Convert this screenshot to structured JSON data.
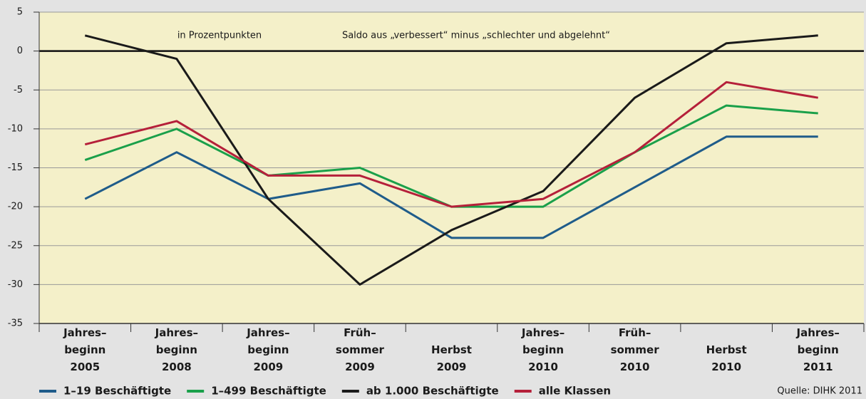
{
  "chart_data": {
    "type": "line",
    "categories": [
      "Jahres–\nbeginn\n2005",
      "Jahres–\nbeginn\n2008",
      "Jahres–\nbeginn\n2009",
      "Früh–\nsommer\n2009",
      "Herbst\n2009",
      "Jahres–\nbeginn\n2010",
      "Früh–\nsommer\n2010",
      "Herbst\n2010",
      "Jahres–\nbeginn\n2011"
    ],
    "series": [
      {
        "name": "1–19 Beschäftigte",
        "color": "#1f5c8a",
        "values": [
          -19,
          -13,
          -19,
          -17,
          -24,
          -24,
          -17.5,
          -11,
          -11
        ]
      },
      {
        "name": "1–499 Beschäftigte",
        "color": "#1aa04a",
        "values": [
          -14,
          -10,
          -16,
          -15,
          -20,
          -20,
          -13,
          -7,
          -8
        ]
      },
      {
        "name": "ab 1.000 Beschäftigte",
        "color": "#1a1a1a",
        "values": [
          2,
          -1,
          -19,
          -30,
          -23,
          -18,
          -6,
          1,
          2
        ]
      },
      {
        "name": "alle Klassen",
        "color": "#b5203a",
        "values": [
          -12,
          -9,
          -16,
          -16,
          -20,
          -19,
          -13,
          -4,
          -6
        ]
      }
    ],
    "ylim": [
      -35,
      5
    ],
    "yticks": [
      -35,
      -30,
      -25,
      -20,
      -15,
      -10,
      -5,
      0,
      5
    ],
    "grid": true,
    "annotations": [
      "in Prozentpunkten",
      "Saldo aus „verbessert“ minus „schlechter und abgelehnt“"
    ],
    "source": "Quelle: DIHK 2011"
  }
}
